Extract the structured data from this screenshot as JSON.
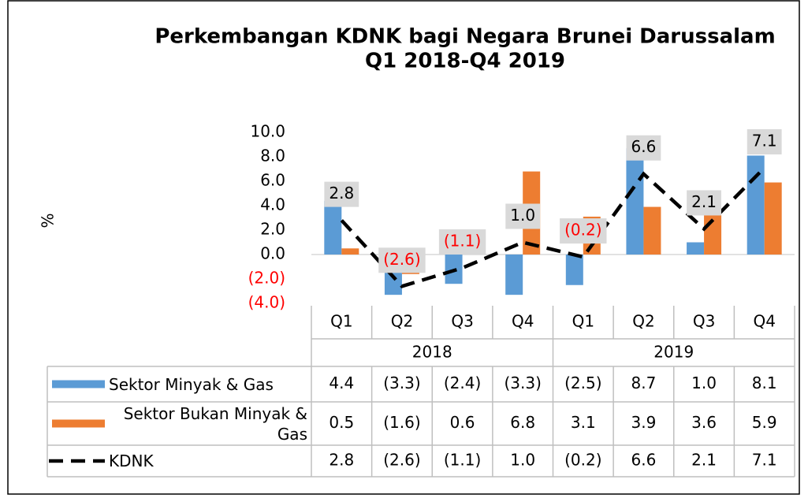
{
  "chart_data": {
    "type": "bar_line_table",
    "title": "Perkembangan KDNK bagi Negara Brunei Darussalam",
    "subtitle": "Q1 2018-Q4 2019",
    "y_label": "%",
    "categories": [
      "Q1",
      "Q2",
      "Q3",
      "Q4",
      "Q1",
      "Q2",
      "Q3",
      "Q4"
    ],
    "year_groups": [
      "2018",
      "2019"
    ],
    "ylim": [
      -4,
      10
    ],
    "yticks": [
      {
        "value": -4,
        "label": "(4.0)"
      },
      {
        "value": -2,
        "label": "(2.0)"
      },
      {
        "value": 0,
        "label": "0.0"
      },
      {
        "value": 2,
        "label": "2.0"
      },
      {
        "value": 4,
        "label": "4.0"
      },
      {
        "value": 6,
        "label": "6.0"
      },
      {
        "value": 8,
        "label": "8.0"
      },
      {
        "value": 10,
        "label": "10.0"
      }
    ],
    "negative_label_color": "#ff0000",
    "series": [
      {
        "name": "Sektor Minyak & Gas",
        "kind": "bar",
        "color": "#5b9bd5",
        "values": [
          4.4,
          -3.3,
          -2.4,
          -3.3,
          -2.5,
          8.7,
          1.0,
          8.1
        ],
        "value_labels": [
          "4.4",
          "(3.3)",
          "(2.4)",
          "(3.3)",
          "(2.5)",
          "8.7",
          "1.0",
          "8.1"
        ]
      },
      {
        "name": "Sektor Bukan Minyak & Gas",
        "kind": "bar",
        "color": "#ed7d31",
        "values": [
          0.5,
          -1.6,
          0.6,
          6.8,
          3.1,
          3.9,
          3.6,
          5.9
        ],
        "value_labels": [
          "0.5",
          "(1.6)",
          "0.6",
          "6.8",
          "3.1",
          "3.9",
          "3.6",
          "5.9"
        ]
      },
      {
        "name": "KDNK",
        "kind": "line",
        "color": "#000000",
        "values": [
          2.8,
          -2.6,
          -1.1,
          1.0,
          -0.2,
          6.6,
          2.1,
          7.1
        ],
        "value_labels": [
          "2.8",
          "(2.6)",
          "(1.1)",
          "1.0",
          "(0.2)",
          "6.6",
          "2.1",
          "7.1"
        ]
      }
    ]
  }
}
